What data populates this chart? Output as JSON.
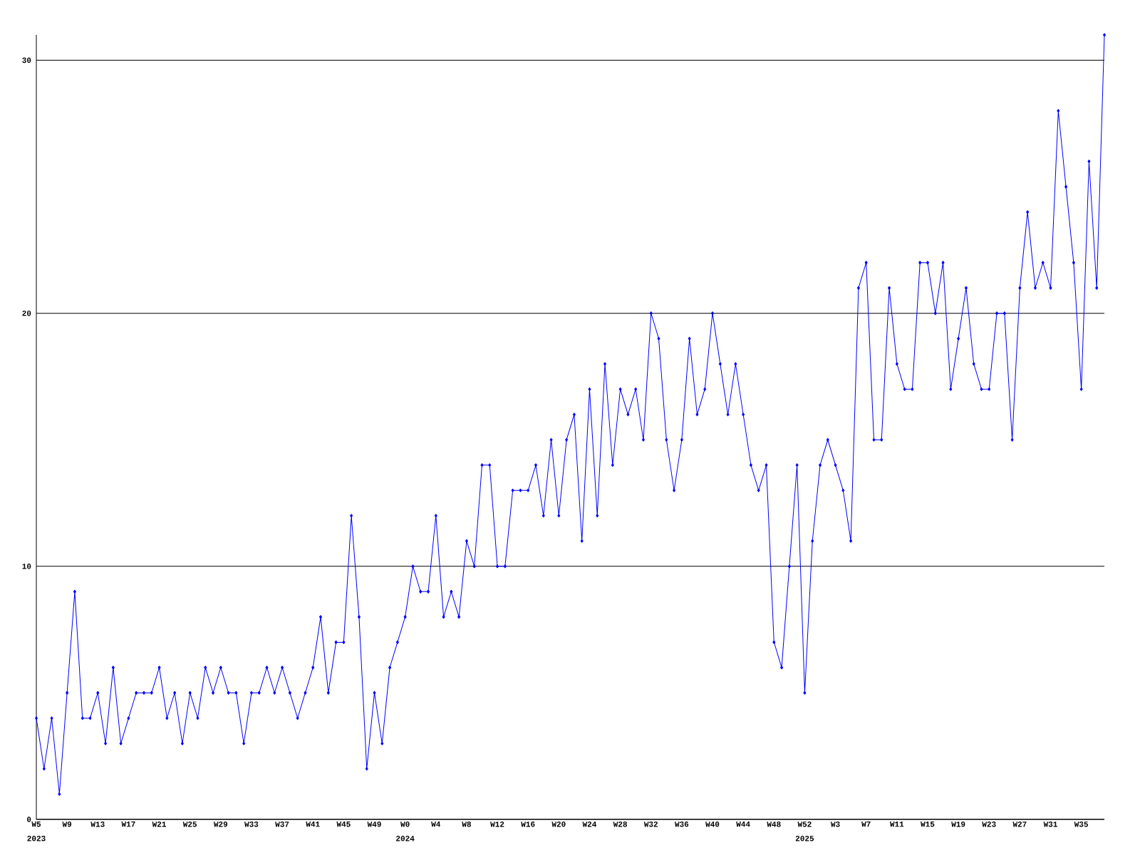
{
  "chart_data": {
    "type": "line",
    "categories": [
      "W5",
      null,
      null,
      null,
      "W9",
      null,
      null,
      null,
      "W13",
      null,
      null,
      null,
      "W17",
      null,
      null,
      null,
      "W21",
      null,
      null,
      null,
      "W25",
      null,
      null,
      null,
      "W29",
      null,
      null,
      null,
      "W33",
      null,
      null,
      null,
      "W37",
      null,
      null,
      null,
      "W41",
      null,
      null,
      null,
      "W45",
      null,
      null,
      null,
      "W49",
      null,
      null,
      null,
      "W0",
      null,
      null,
      null,
      "W4",
      null,
      null,
      null,
      "W8",
      null,
      null,
      null,
      "W12",
      null,
      null,
      null,
      "W16",
      null,
      null,
      null,
      "W20",
      null,
      null,
      null,
      "W24",
      null,
      null,
      null,
      "W28",
      null,
      null,
      null,
      "W32",
      null,
      null,
      null,
      "W36",
      null,
      null,
      null,
      "W40",
      null,
      null,
      null,
      "W44",
      null,
      null,
      null,
      "W48",
      null,
      null,
      null,
      "W52",
      null,
      null,
      null,
      "W3",
      null,
      null,
      null,
      "W7",
      null,
      null,
      null,
      "W11",
      null,
      null,
      null,
      "W15",
      null,
      null,
      null,
      "W19",
      null,
      null,
      null,
      "W23",
      null,
      null,
      null,
      "W27",
      null,
      null,
      null,
      "W31",
      null,
      null,
      null,
      "W35",
      null,
      null,
      null
    ],
    "values": [
      4,
      2,
      4,
      1,
      5,
      9,
      4,
      4,
      5,
      3,
      6,
      3,
      4,
      5,
      5,
      5,
      6,
      4,
      5,
      3,
      5,
      4,
      6,
      5,
      6,
      5,
      5,
      3,
      5,
      5,
      6,
      5,
      6,
      5,
      4,
      5,
      6,
      8,
      5,
      7,
      7,
      12,
      8,
      2,
      5,
      3,
      6,
      7,
      8,
      10,
      9,
      9,
      12,
      8,
      9,
      8,
      11,
      10,
      14,
      14,
      10,
      10,
      13,
      13,
      13,
      14,
      12,
      15,
      12,
      15,
      16,
      11,
      17,
      12,
      18,
      14,
      17,
      16,
      17,
      15,
      20,
      19,
      15,
      13,
      15,
      19,
      16,
      17,
      20,
      18,
      16,
      18,
      16,
      14,
      13,
      14,
      7,
      6,
      10,
      14,
      5,
      11,
      14,
      15,
      14,
      13,
      11,
      21,
      22,
      15,
      15,
      21,
      18,
      17,
      17,
      22,
      22,
      20,
      22,
      17,
      19,
      21,
      18,
      17,
      17,
      20,
      20,
      15,
      21,
      24,
      21,
      22,
      21,
      28,
      25,
      22,
      17,
      26,
      21,
      31
    ],
    "color": "#0000ff",
    "marker": "diamond",
    "grid": "y",
    "ylim": [
      0,
      31
    ],
    "yticks": [
      0,
      10,
      20,
      30
    ],
    "annotations": [
      "2023",
      "2024",
      "2025"
    ]
  }
}
